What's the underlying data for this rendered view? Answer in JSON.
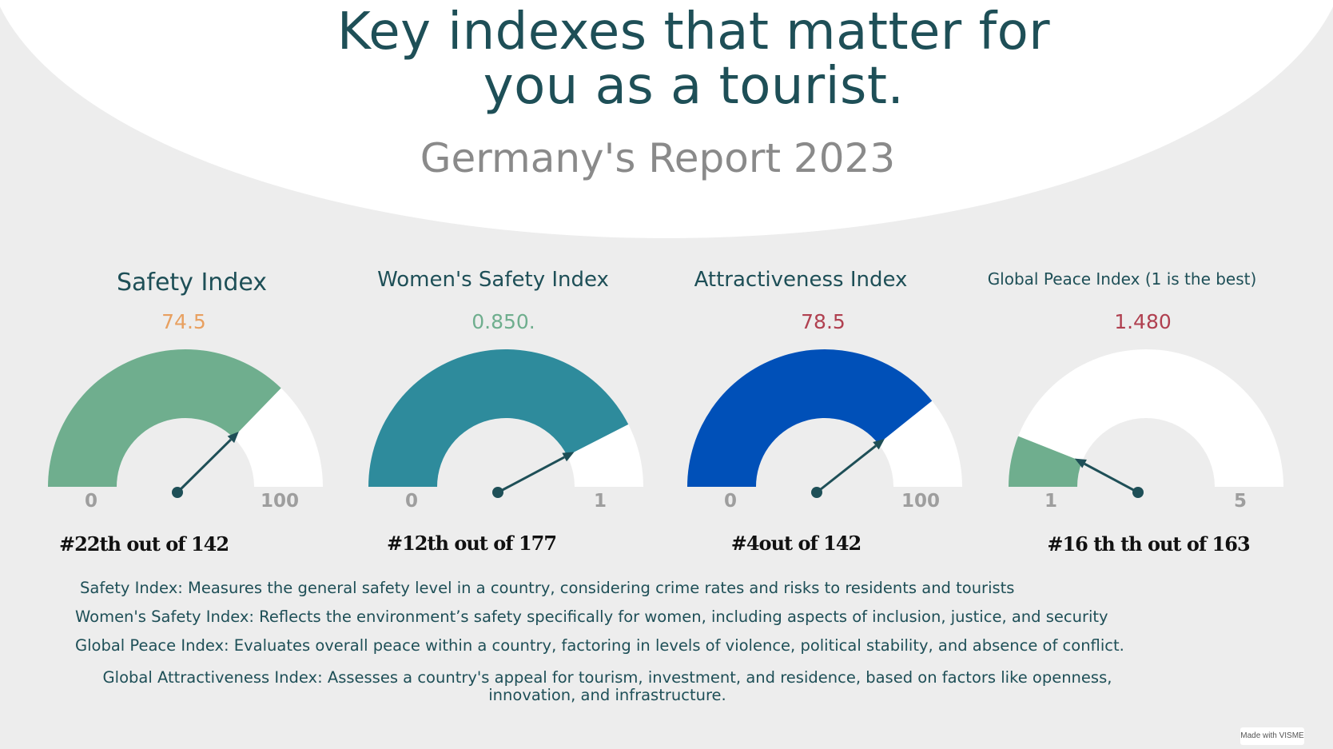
{
  "header": {
    "title_line1": "Key indexes that matter for",
    "title_line2": "you as a tourist.",
    "subtitle": "Germany's Report 2023"
  },
  "chart_data": [
    {
      "type": "gauge",
      "title": "Safety Index",
      "value_label": "74.5",
      "value": 74.5,
      "min": 0,
      "max": 100,
      "min_label": "0",
      "max_label": "100",
      "rank_label": "#22th out of 142",
      "fill_color": "#6fae8e",
      "value_color": "#e8a060"
    },
    {
      "type": "gauge",
      "title": "Women's Safety Index",
      "value_label": "0.850.",
      "value": 0.85,
      "min": 0,
      "max": 1,
      "min_label": "0",
      "max_label": "1",
      "rank_label": "#12th out of 177",
      "fill_color": "#2e8b9c",
      "value_color": "#6fae8e"
    },
    {
      "type": "gauge",
      "title": "Attractiveness Index",
      "value_label": "78.5",
      "value": 78.5,
      "min": 0,
      "max": 100,
      "min_label": "0",
      "max_label": "100",
      "rank_label": "#4out of 142",
      "fill_color": "#0050b8",
      "value_color": "#b04050"
    },
    {
      "type": "gauge",
      "title": "Global Peace Index (1 is the best)",
      "value_label": "1.480",
      "value": 1.48,
      "min": 1,
      "max": 5,
      "min_label": "1",
      "max_label": "5",
      "rank_label": "#16 th th out of 163",
      "fill_color": "#6fae8e",
      "value_color": "#b04050"
    }
  ],
  "descriptions": [
    "Safety Index: Measures the general safety level in a country, considering crime rates and risks to residents and tourists",
    "Women's Safety Index: Reflects the environment’s safety specifically for women, including aspects of inclusion, justice, and security",
    "Global Peace Index: Evaluates overall peace within a country, factoring in levels of violence, political stability, and absence of conflict.",
    "Global Attractiveness Index: Assesses a country's appeal for tourism, investment, and residence, based on factors like openness, innovation, and infrastructure."
  ],
  "footer": {
    "badge": "Made with VISME"
  },
  "colors": {
    "heading": "#1e4f57",
    "needle": "#1e4f57",
    "track": "#ffffff"
  }
}
